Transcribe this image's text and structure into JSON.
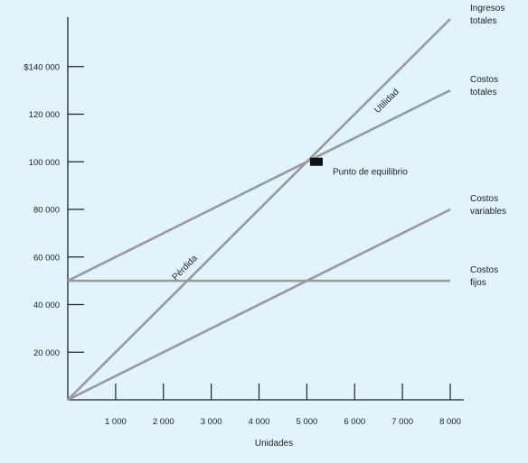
{
  "chart_data": {
    "type": "line",
    "xlabel": "Unidades",
    "ylabel": "",
    "xlim": [
      0,
      8000
    ],
    "ylim": [
      0,
      160000
    ],
    "x_ticks": [
      1000,
      2000,
      3000,
      4000,
      5000,
      6000,
      7000,
      8000
    ],
    "x_tick_labels": [
      "1 000",
      "2 000",
      "3 000",
      "4 000",
      "5 000",
      "6 000",
      "7 000",
      "8 000"
    ],
    "y_ticks": [
      20000,
      40000,
      60000,
      80000,
      100000,
      120000,
      140000
    ],
    "y_tick_labels": [
      "20 000",
      "40 000",
      "60 000",
      "80 000",
      "100 000",
      "120 000",
      "$140 000"
    ],
    "series": [
      {
        "name": "Ingresos totales",
        "label_lines": [
          "Ingresos",
          "totales"
        ],
        "x": [
          0,
          8000
        ],
        "y": [
          0,
          160000
        ]
      },
      {
        "name": "Costos totales",
        "label_lines": [
          "Costos",
          "totales"
        ],
        "x": [
          0,
          8000
        ],
        "y": [
          50000,
          130000
        ]
      },
      {
        "name": "Costos variables",
        "label_lines": [
          "Costos",
          "variables"
        ],
        "x": [
          0,
          8000
        ],
        "y": [
          0,
          80000
        ]
      },
      {
        "name": "Costos fijos",
        "label_lines": [
          "Costos",
          "fijos"
        ],
        "x": [
          0,
          8000
        ],
        "y": [
          50000,
          50000
        ]
      }
    ],
    "annotations": {
      "breakeven": {
        "label": "Punto de equilibrio",
        "x": 5200,
        "y": 100000
      },
      "profit": {
        "label": "Utilidad",
        "x": 6900,
        "y": 124000
      },
      "loss": {
        "label": "Pérdida",
        "x": 2600,
        "y": 60000
      }
    },
    "colors": {
      "line": "#999999",
      "axis": "#222222",
      "background": "#e1f3fb",
      "marker": "#111111"
    }
  }
}
